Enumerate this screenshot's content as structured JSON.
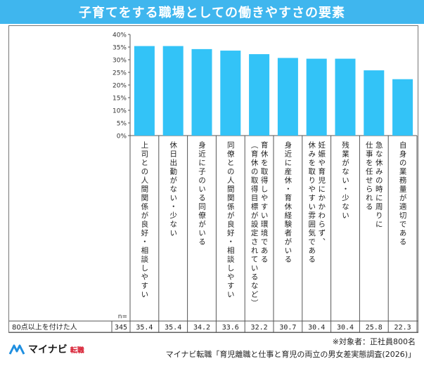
{
  "title": "子育てをする職場としての働きやすさの要素",
  "chart_data": {
    "type": "bar",
    "categories": [
      "上司との人間関係が良好・相談しやすい",
      "休日出勤がない・少ない",
      "身近に子のいる同僚がいる",
      "同僚との人間関係が良好・相談しやすい",
      "育休を取得しやすい環境である（育休の取得目標が設定されているなど）",
      "身近に産休・育休経験者がいる",
      "妊娠や育児にかかわらず休みを取りやすい雰囲気である",
      "残業がない・少ない",
      "急な休みの時に周りに仕事を任せられる",
      "自身の業務量が適切である"
    ],
    "category_lines": [
      [
        "上司との人間関係が良好・相談しやすい"
      ],
      [
        "休日出勤がない・少ない"
      ],
      [
        "身近に子のいる同僚がいる"
      ],
      [
        "同僚との人間関係が良好・相談しやすい"
      ],
      [
        "育休を取得しやすい環境である",
        "（育休の取得目標が設定されているなど）"
      ],
      [
        "身近に産休・育休経験者がいる"
      ],
      [
        "妊娠や育児にかかわらず、",
        "休みを取りやすい雰囲気である"
      ],
      [
        "残業がない・少ない"
      ],
      [
        "急な休みの時に周りに",
        "仕事を任せられる"
      ],
      [
        "自身の業務量が適切である"
      ]
    ],
    "series": [
      {
        "name": "80点以上を付けた人",
        "values": [
          35.4,
          35.4,
          34.2,
          33.6,
          32.2,
          30.7,
          30.4,
          30.4,
          25.8,
          22.3
        ]
      }
    ],
    "yticks": [
      "0%",
      "5%",
      "10%",
      "15%",
      "20%",
      "25%",
      "30%",
      "35%",
      "40%"
    ],
    "ylim": [
      0,
      40
    ],
    "n_label": "n=",
    "n": "345",
    "value_labels": [
      "35.4",
      "35.4",
      "34.2",
      "33.6",
      "32.2",
      "30.7",
      "30.4",
      "30.4",
      "25.8",
      "22.3"
    ],
    "bar_color": "#33c3f7"
  },
  "footer": {
    "logo_text": "マイナビ",
    "logo_badge": "転職",
    "note": "※対象者：正社員800名",
    "source": "マイナビ転職「育児離職と仕事と育児の両立の男女差実態調査(2026)」"
  }
}
